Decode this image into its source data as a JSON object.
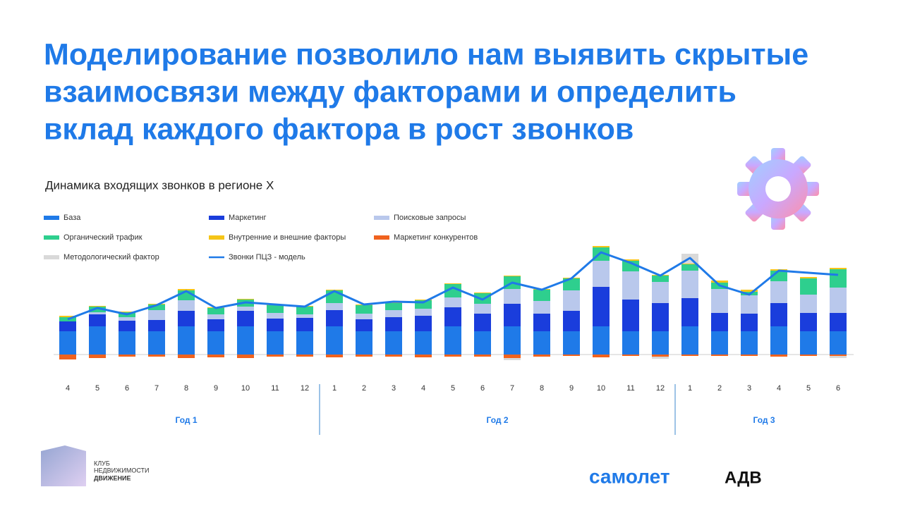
{
  "title_lines": [
    "Моделирование позволило нам выявить скрытые",
    "взаимосвязи между факторами и определить",
    "вклад каждого фактора в рост звонков"
  ],
  "chart_data": {
    "type": "bar",
    "stacked": true,
    "title": "Динамика входящих звонков в регионе Х",
    "categories": [
      "4",
      "5",
      "6",
      "7",
      "8",
      "9",
      "10",
      "11",
      "12",
      "1",
      "2",
      "3",
      "4",
      "5",
      "6",
      "7",
      "8",
      "9",
      "10",
      "11",
      "12",
      "1",
      "2",
      "3",
      "4",
      "5",
      "6"
    ],
    "category_groups": [
      {
        "label": "Год 1",
        "size": 9
      },
      {
        "label": "Год 2",
        "size": 12
      },
      {
        "label": "Год 3",
        "size": 6
      }
    ],
    "ylim": [
      -10,
      160
    ],
    "series": [
      {
        "name": "База",
        "color": "#1f7ae8",
        "values": [
          33,
          40,
          33,
          33,
          40,
          33,
          40,
          33,
          33,
          40,
          33,
          33,
          33,
          40,
          33,
          40,
          33,
          33,
          40,
          33,
          33,
          40,
          33,
          33,
          40,
          33,
          33
        ]
      },
      {
        "name": "Маркетинг",
        "color": "#1a3ddc",
        "values": [
          14,
          17,
          15,
          16,
          22,
          17,
          22,
          18,
          19,
          23,
          17,
          20,
          22,
          27,
          25,
          32,
          25,
          29,
          56,
          45,
          40,
          40,
          26,
          25,
          33,
          26,
          26
        ]
      },
      {
        "name": "Поисковые запросы",
        "color": "#b9c8ec",
        "values": [
          0,
          3,
          5,
          14,
          15,
          7,
          6,
          8,
          5,
          10,
          8,
          10,
          10,
          14,
          14,
          21,
          18,
          29,
          37,
          40,
          30,
          39,
          34,
          26,
          31,
          26,
          36
        ]
      },
      {
        "name": "Органический трафик",
        "color": "#2ecf8e",
        "values": [
          6,
          8,
          7,
          8,
          14,
          9,
          10,
          11,
          11,
          18,
          12,
          10,
          12,
          19,
          15,
          18,
          16,
          17,
          19,
          15,
          9,
          9,
          9,
          5,
          15,
          23,
          26
        ]
      },
      {
        "name": "Внутренние и внешние факторы",
        "color": "#f5c518",
        "values": [
          2,
          1,
          1,
          1,
          2,
          1,
          1,
          1,
          1,
          1,
          1,
          1,
          1,
          1,
          1,
          1,
          1,
          1,
          2,
          2,
          1,
          1,
          3,
          3,
          2,
          2,
          2
        ]
      },
      {
        "name": "Маркетинг конкурентов",
        "color": "#f0621e",
        "values": [
          -7,
          -5,
          -3,
          -3,
          -5,
          -4,
          -5,
          -3,
          -3,
          -4,
          -3,
          -3,
          -4,
          -3,
          -3,
          -5,
          -3,
          -2,
          -4,
          -2,
          -3,
          -2,
          -2,
          -2,
          -3,
          -2,
          -2
        ]
      },
      {
        "name": "Методологический фактор",
        "color": "#d9d9d9",
        "values": [
          0,
          0,
          0,
          0,
          0,
          0,
          0,
          0,
          0,
          0,
          0,
          0,
          0,
          0,
          0,
          -3,
          0,
          0,
          0,
          0,
          -3,
          14,
          0,
          0,
          0,
          0,
          -3
        ]
      },
      {
        "name": "Звонки ПЦЗ - модель",
        "color": "#1f7ae8",
        "type": "line",
        "values": [
          50,
          66,
          57,
          70,
          90,
          66,
          74,
          71,
          68,
          90,
          71,
          75,
          74,
          95,
          78,
          102,
          92,
          108,
          145,
          130,
          112,
          137,
          98,
          85,
          119,
          116,
          113
        ]
      }
    ]
  },
  "logo_club": [
    "КЛУБ",
    "НЕДВИЖИМОСТИ",
    "ДВИЖЕНИЕ"
  ],
  "logo_samolet": "самолет",
  "logo_adv": "АДВ"
}
